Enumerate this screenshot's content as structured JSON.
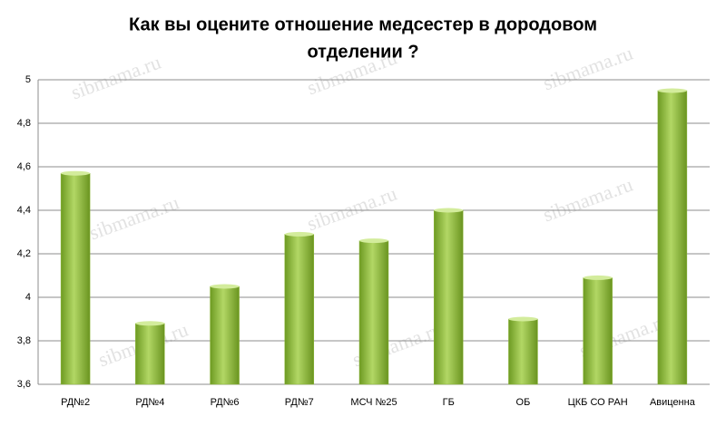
{
  "chart_data": {
    "type": "bar",
    "title": [
      "Как вы оцените отношение медсестер в дородовом",
      "отделении ?"
    ],
    "categories": [
      "РД№2",
      "РД№4",
      "РД№6",
      "РД№7",
      "МСЧ №25",
      "ГБ",
      "ОБ",
      "ЦКБ СО РАН",
      "Авиценна"
    ],
    "values": [
      4.57,
      3.88,
      4.05,
      4.29,
      4.26,
      4.4,
      3.9,
      4.09,
      4.95
    ],
    "color": "#8db83a",
    "ylim": [
      3.6,
      5
    ],
    "yticks": [
      {
        "value": 3.6,
        "label": "3,6"
      },
      {
        "value": 3.8,
        "label": "3,8"
      },
      4,
      {
        "value": 4.2,
        "label": "4,2"
      },
      {
        "value": 4.4,
        "label": "4,4"
      },
      {
        "value": 4.6,
        "label": "4,6"
      },
      {
        "value": 4.8,
        "label": "4,8"
      },
      5
    ],
    "grid": true,
    "watermark": "sibmama.ru"
  }
}
